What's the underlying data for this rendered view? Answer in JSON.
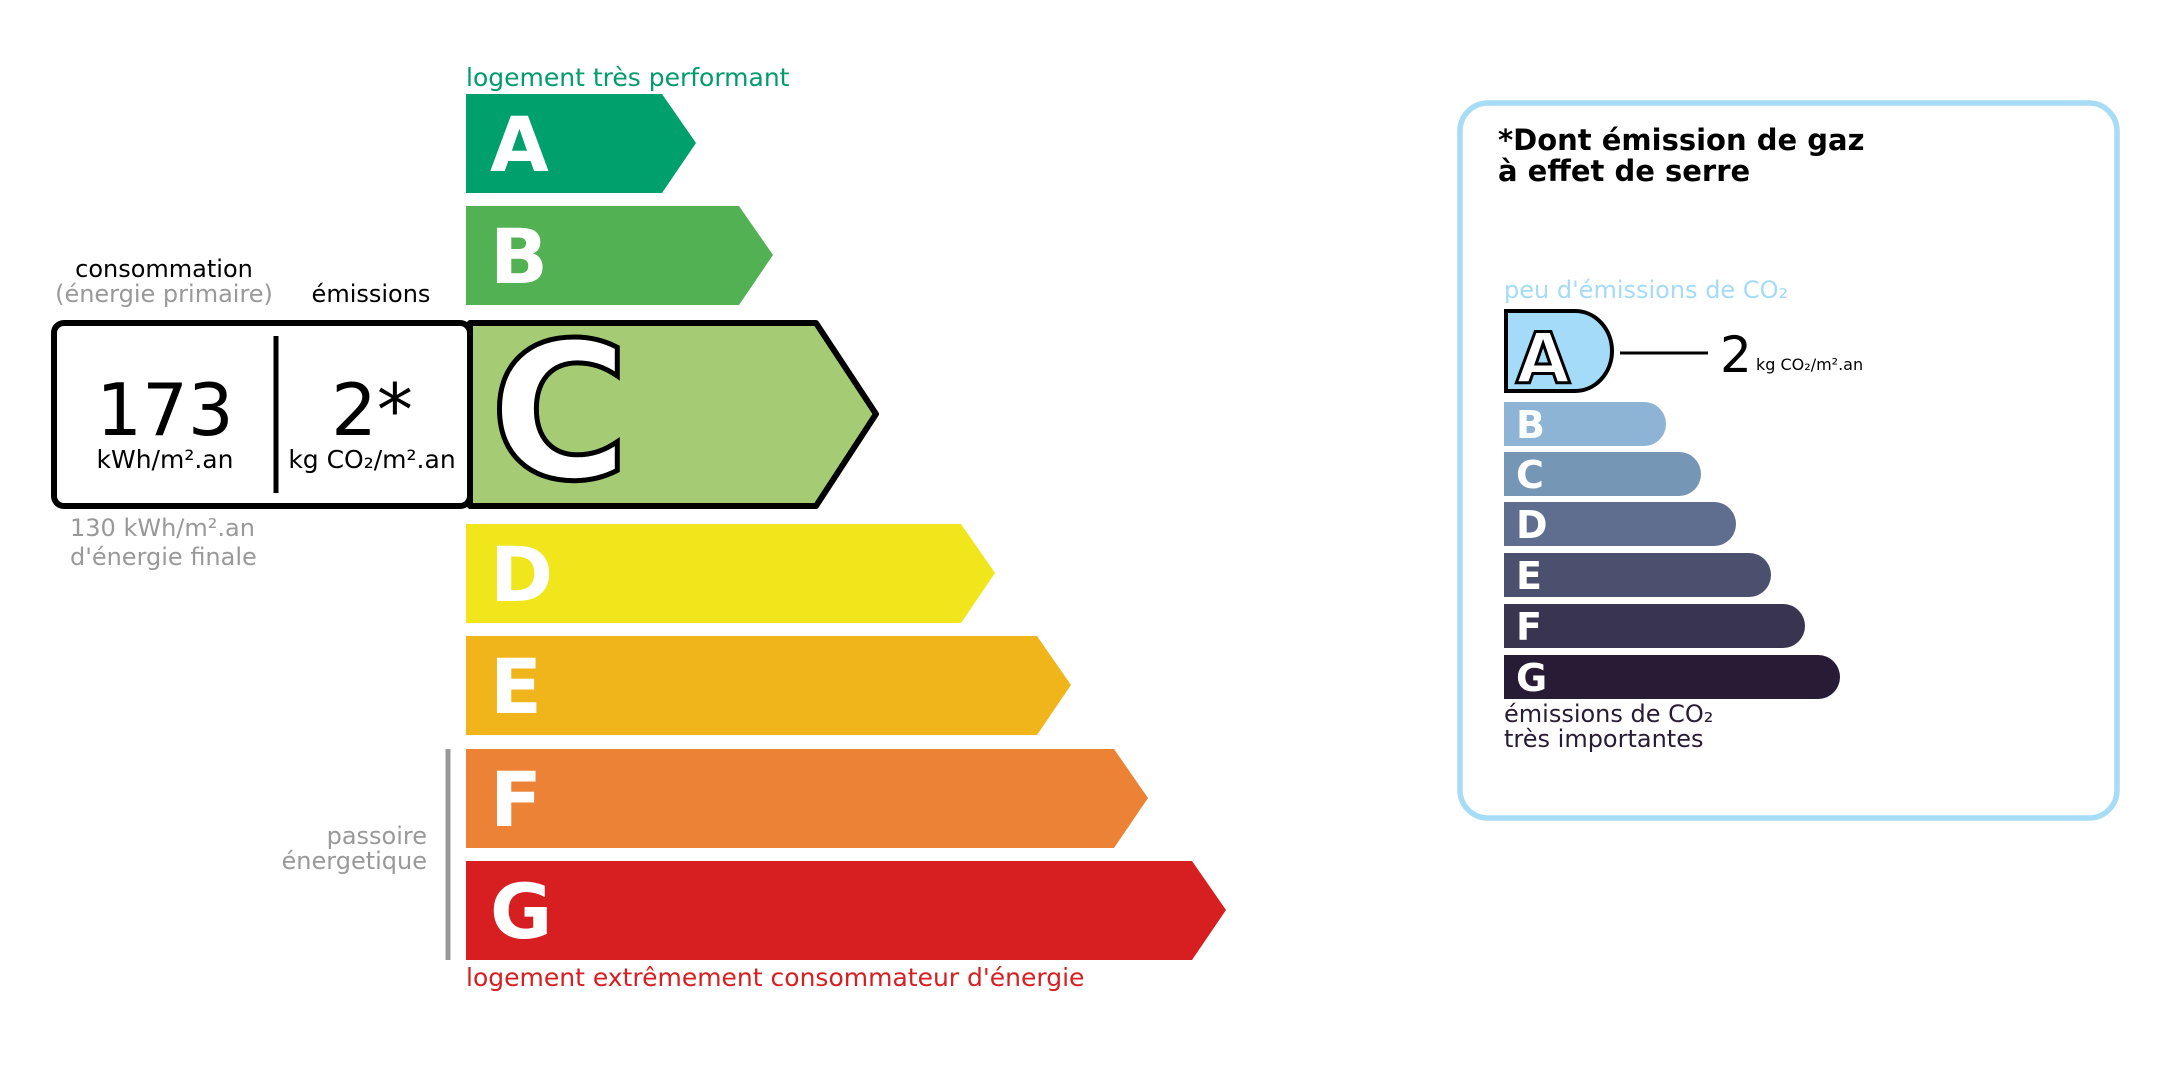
{
  "energy_label": {
    "top_caption": "logement très performant",
    "bottom_caption": "logement extrêmement consommateur d'énergie",
    "passoire_label": [
      "passoire",
      "énergetique"
    ],
    "classes": [
      {
        "letter": "A",
        "color": "#00a06d"
      },
      {
        "letter": "B",
        "color": "#52b153"
      },
      {
        "letter": "C",
        "color": "#a5cc74"
      },
      {
        "letter": "D",
        "color": "#f1e51c"
      },
      {
        "letter": "E",
        "color": "#efb51a"
      },
      {
        "letter": "F",
        "color": "#eb8235"
      },
      {
        "letter": "G",
        "color": "#d71e21"
      }
    ],
    "current_class": "C",
    "consumption": {
      "header": "consommation",
      "subheader": "(énergie primaire)",
      "value": "173",
      "unit": "kWh/m².an"
    },
    "emissions": {
      "header": "émissions",
      "value": "2*",
      "unit": "kg CO₂/m².an"
    },
    "final_energy": [
      "130 kWh/m².an",
      "d'énergie finale"
    ]
  },
  "ghg_panel": {
    "title": [
      "*Dont émission de gaz",
      "à effet de serre"
    ],
    "top_caption": "peu d'émissions de CO₂",
    "bottom_caption": [
      "émissions de CO₂",
      "très importantes"
    ],
    "current_class": "A",
    "value": "2",
    "unit": "kg CO₂/m².an",
    "border_color": "#a6dcf5",
    "classes": [
      {
        "letter": "A",
        "color": "#a4dbf8"
      },
      {
        "letter": "B",
        "color": "#8db4d4"
      },
      {
        "letter": "C",
        "color": "#7596b5"
      },
      {
        "letter": "D",
        "color": "#5f6d8f"
      },
      {
        "letter": "E",
        "color": "#4c506f"
      },
      {
        "letter": "F",
        "color": "#393551"
      },
      {
        "letter": "G",
        "color": "#281b35"
      }
    ]
  }
}
